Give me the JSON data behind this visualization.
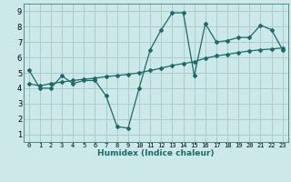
{
  "xlabel": "Humidex (Indice chaleur)",
  "ylabel": "",
  "bg_color": "#cce8e8",
  "grid_color": "#aacccc",
  "line_color": "#1a6b6b",
  "xlim": [
    -0.5,
    23.5
  ],
  "ylim": [
    0.5,
    9.5
  ],
  "xticks": [
    0,
    1,
    2,
    3,
    4,
    5,
    6,
    7,
    8,
    9,
    10,
    11,
    12,
    13,
    14,
    15,
    16,
    17,
    18,
    19,
    20,
    21,
    22,
    23
  ],
  "yticks": [
    1,
    2,
    3,
    4,
    5,
    6,
    7,
    8,
    9
  ],
  "series1_x": [
    0,
    1,
    2,
    3,
    4,
    5,
    6,
    7,
    8,
    9,
    10,
    11,
    12,
    13,
    14,
    15,
    16,
    17,
    18,
    19,
    20,
    21,
    22,
    23
  ],
  "series1_y": [
    5.2,
    4.0,
    4.0,
    4.8,
    4.3,
    4.5,
    4.5,
    3.5,
    1.5,
    1.4,
    4.0,
    6.5,
    7.8,
    8.9,
    8.9,
    4.8,
    8.2,
    7.0,
    7.1,
    7.3,
    7.3,
    8.1,
    7.8,
    6.5
  ],
  "series2_x": [
    0,
    1,
    2,
    3,
    4,
    5,
    6,
    7,
    8,
    9,
    10,
    11,
    12,
    13,
    14,
    15,
    16,
    17,
    18,
    19,
    20,
    21,
    22,
    23
  ],
  "series2_y": [
    4.3,
    4.15,
    4.3,
    4.4,
    4.5,
    4.58,
    4.65,
    4.75,
    4.82,
    4.9,
    5.0,
    5.15,
    5.3,
    5.48,
    5.6,
    5.72,
    5.95,
    6.1,
    6.2,
    6.32,
    6.42,
    6.5,
    6.55,
    6.62
  ]
}
